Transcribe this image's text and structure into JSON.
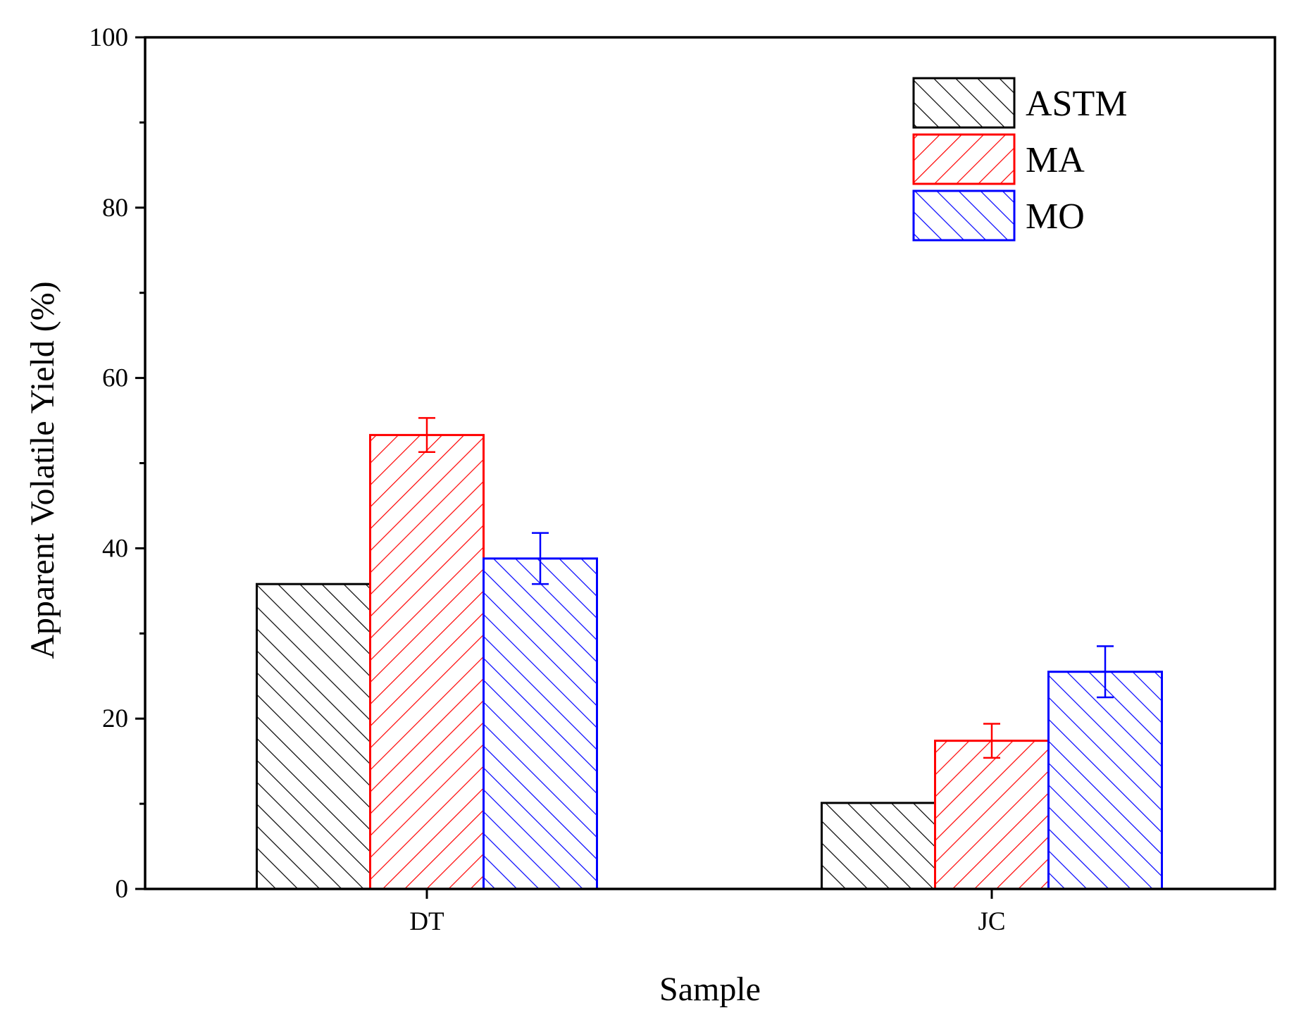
{
  "chart_data": {
    "type": "bar",
    "title": "",
    "xlabel": "Sample",
    "ylabel": "Apparent Volatile Yield (%)",
    "ylim": [
      0,
      100
    ],
    "yticks": [
      0,
      20,
      40,
      60,
      80,
      100
    ],
    "yticks_labels": [
      "0",
      "20",
      "40",
      "60",
      "80",
      "100"
    ],
    "categories": [
      "DT",
      "JC"
    ],
    "legend_position": "top-right",
    "series": [
      {
        "name": "ASTM",
        "color": "#000000",
        "hatch": "backslash",
        "values": [
          35.8,
          10.1
        ],
        "errors": [
          0,
          0
        ]
      },
      {
        "name": "MA",
        "color": "#ff0000",
        "hatch": "slash",
        "values": [
          53.3,
          17.4
        ],
        "errors": [
          2.0,
          2.0
        ]
      },
      {
        "name": "MO",
        "color": "#0000ff",
        "hatch": "backslash",
        "values": [
          38.8,
          25.5
        ],
        "errors": [
          3.0,
          3.0
        ]
      }
    ]
  }
}
